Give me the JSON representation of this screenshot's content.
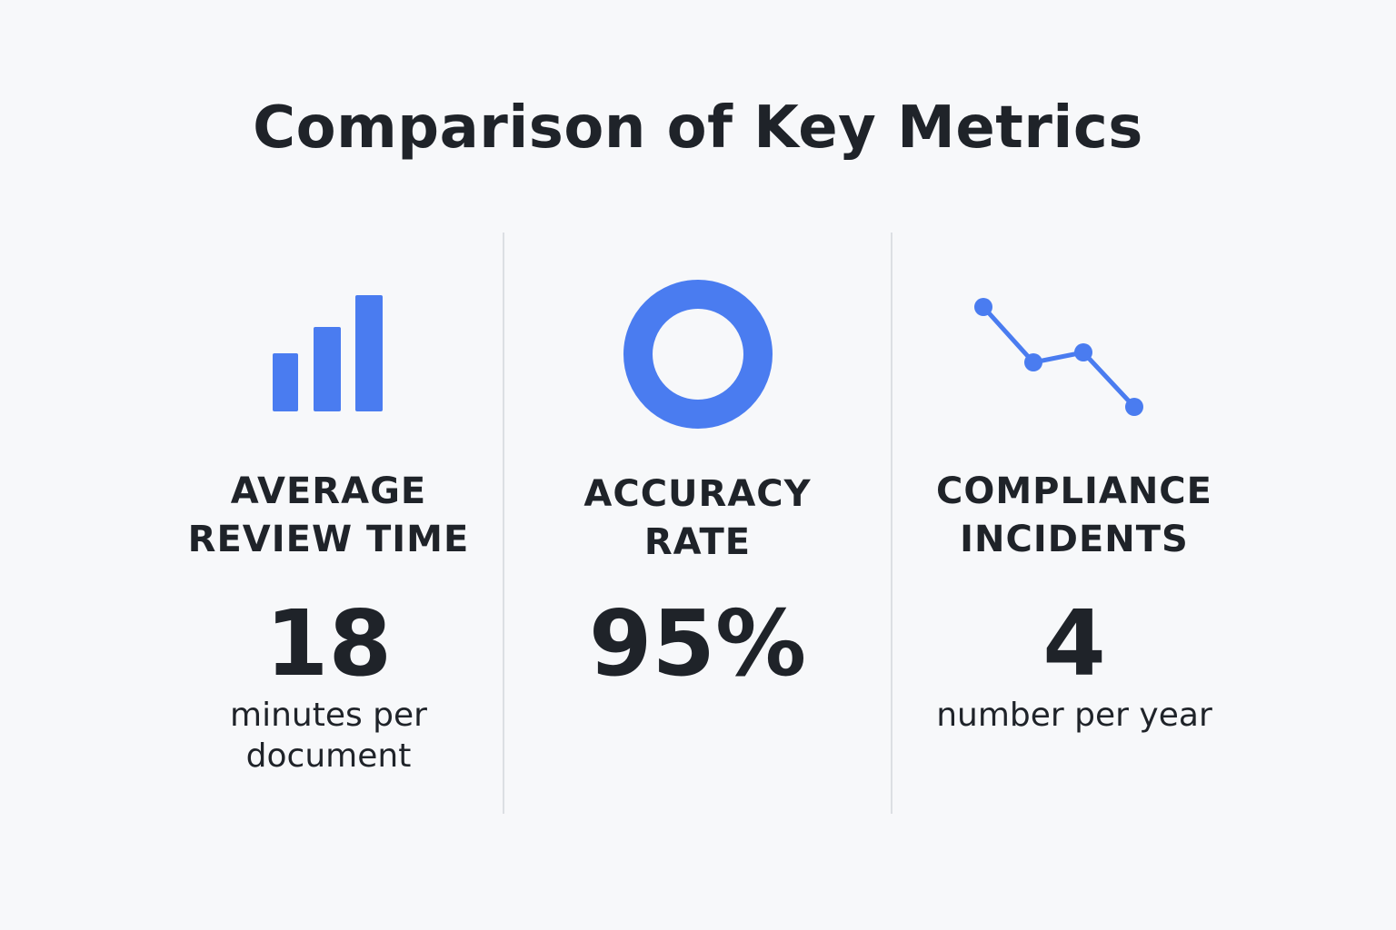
{
  "title": "Comparison of Key Metrics",
  "colors": {
    "accent": "#4a7cf0",
    "text": "#1f2329",
    "divider": "#dcdfe3",
    "background": "#f7f8fa"
  },
  "metrics": [
    {
      "icon": "bar-chart-icon",
      "label_lines": [
        "AVERAGE",
        "REVIEW TIME"
      ],
      "value": "18",
      "unit_lines": [
        "minutes per",
        "document"
      ]
    },
    {
      "icon": "donut-ring-icon",
      "label_lines": [
        "ACCURACY",
        "RATE"
      ],
      "value": "95%",
      "unit_lines": []
    },
    {
      "icon": "line-trend-down-icon",
      "label_lines": [
        "COMPLIANCE",
        "INCIDENTS"
      ],
      "value": "4",
      "unit_lines": [
        "number per year"
      ]
    }
  ]
}
